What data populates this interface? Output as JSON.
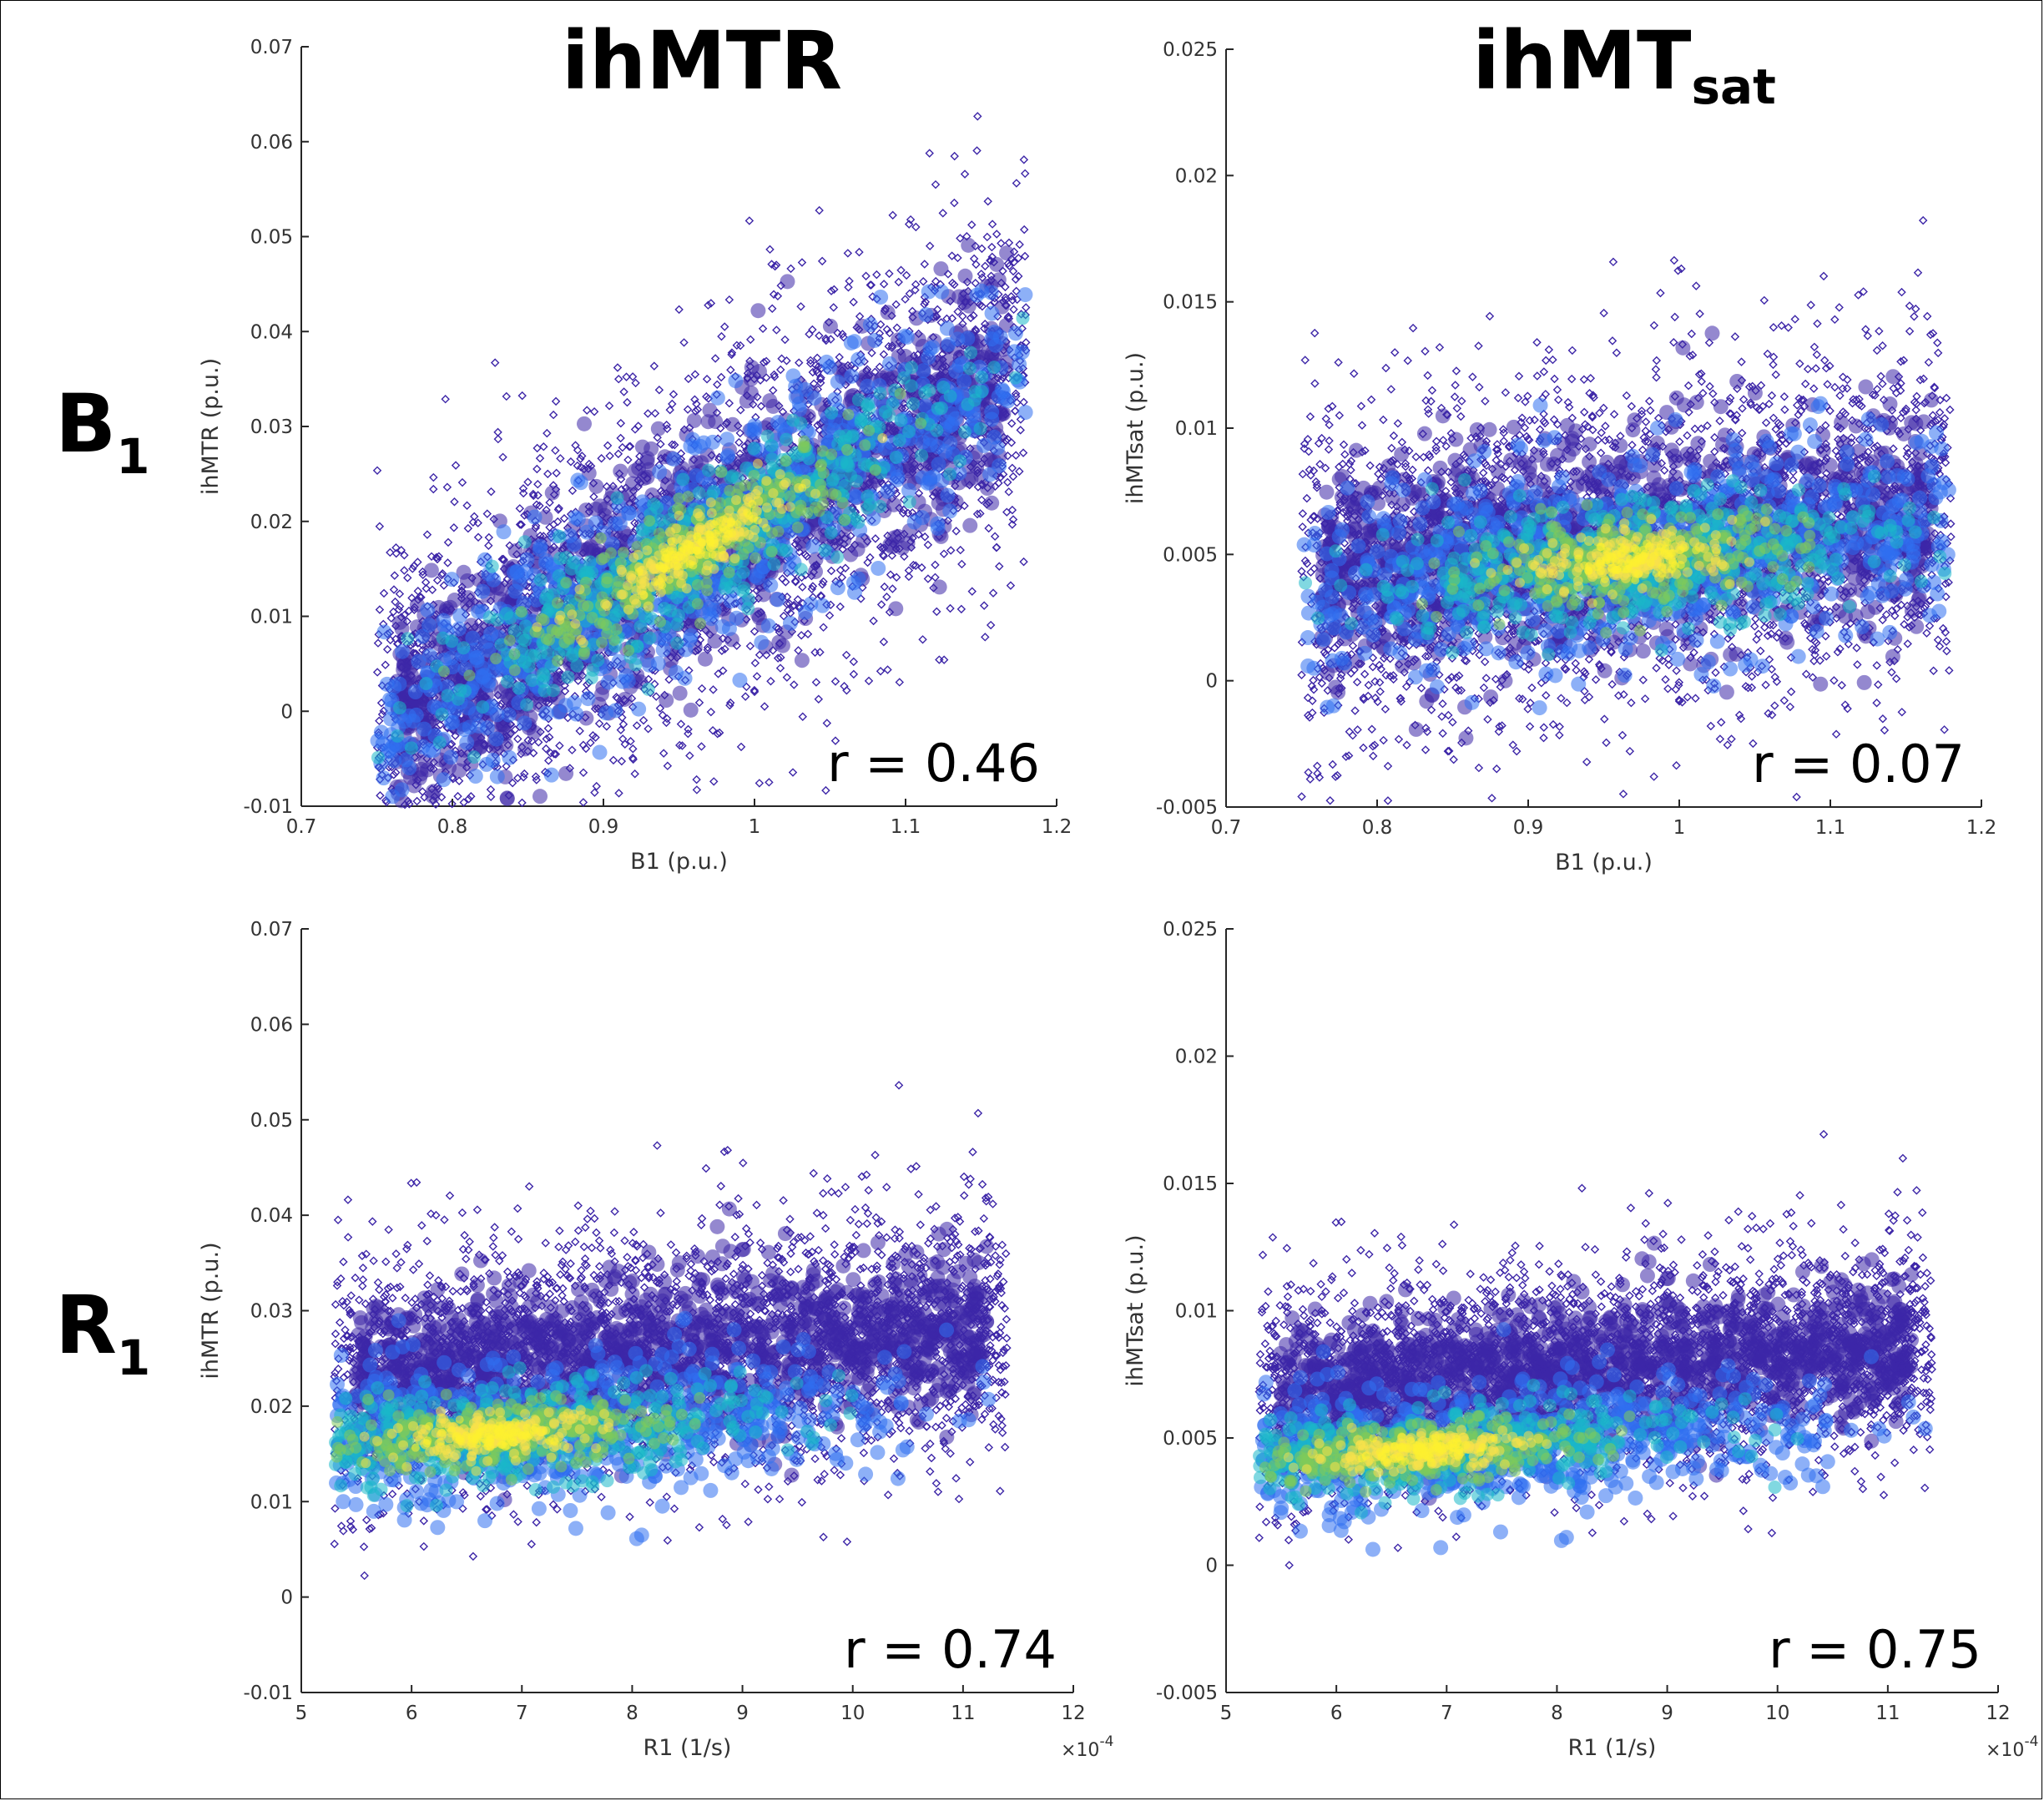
{
  "column_titles": [
    {
      "main": "ihMTR",
      "sub": ""
    },
    {
      "main": "ihMT",
      "sub": "sat"
    }
  ],
  "row_labels": [
    {
      "main": "B",
      "sub": "1"
    },
    {
      "main": "R",
      "sub": "1"
    }
  ],
  "colors": {
    "low_density": "#3d26a8",
    "mid_low": "#2f6ff0",
    "mid": "#19b8c8",
    "mid_high": "#7fcb5a",
    "high_density": "#f9e14b",
    "peak": "#fdf02f"
  },
  "chart_data": [
    {
      "type": "scatter",
      "xlabel": "B1 (p.u.)",
      "ylabel": "ihMTR (p.u.)",
      "xlim": [
        0.7,
        1.2
      ],
      "ylim": [
        -0.01,
        0.07
      ],
      "xticks": [
        "0.7",
        "0.8",
        "0.9",
        "1",
        "1.1",
        "1.2"
      ],
      "yticks": [
        "-0.01",
        "0",
        "0.01",
        "0.02",
        "0.03",
        "0.04",
        "0.05",
        "0.06",
        "0.07"
      ],
      "x_multiplier": "",
      "correlation": "r = 0.46",
      "point_cloud": {
        "x_range": [
          0.75,
          1.18
        ],
        "center": [
          0.96,
          0.017
        ],
        "y_spread": 0.008,
        "slope": 0.045,
        "density_peak": [
          0.96,
          0.017
        ]
      }
    },
    {
      "type": "scatter",
      "xlabel": "B1 (p.u.)",
      "ylabel": "ihMTsat (p.u.)",
      "xlim": [
        0.7,
        1.2
      ],
      "ylim": [
        -0.005,
        0.025
      ],
      "xticks": [
        "0.7",
        "0.8",
        "0.9",
        "1",
        "1.1",
        "1.2"
      ],
      "yticks": [
        "-0.005",
        "0",
        "0.005",
        "0.01",
        "0.015",
        "0.02",
        "0.025"
      ],
      "x_multiplier": "",
      "correlation": "r = 0.07",
      "point_cloud": {
        "x_range": [
          0.75,
          1.18
        ],
        "center": [
          0.97,
          0.0055
        ],
        "y_spread": 0.0028,
        "slope": 0.003,
        "density_peak": [
          0.97,
          0.0048
        ]
      }
    },
    {
      "type": "scatter",
      "xlabel": "R1 (1/s)",
      "ylabel": "ihMTR (p.u.)",
      "xlim": [
        5,
        12
      ],
      "ylim": [
        -0.01,
        0.07
      ],
      "xticks": [
        "5",
        "6",
        "7",
        "8",
        "9",
        "10",
        "11",
        "12"
      ],
      "yticks": [
        "-0.01",
        "0",
        "0.01",
        "0.02",
        "0.03",
        "0.04",
        "0.05",
        "0.06",
        "0.07"
      ],
      "x_multiplier": "×10^-4",
      "correlation": "r = 0.74",
      "point_cloud": {
        "x_range": [
          5.3,
          11.4
        ],
        "center": [
          7.8,
          0.025
        ],
        "y_spread": 0.0055,
        "slope": 0.0062,
        "density_peak": [
          6.75,
          0.017
        ]
      }
    },
    {
      "type": "scatter",
      "xlabel": "R1 (1/s)",
      "ylabel": "ihMTsat (p.u.)",
      "xlim": [
        5,
        12
      ],
      "ylim": [
        -0.005,
        0.025
      ],
      "xticks": [
        "5",
        "6",
        "7",
        "8",
        "9",
        "10",
        "11",
        "12"
      ],
      "yticks": [
        "-0.005",
        "0",
        "0.005",
        "0.01",
        "0.015",
        "0.02",
        "0.025"
      ],
      "x_multiplier": "×10^-4",
      "correlation": "r = 0.75",
      "point_cloud": {
        "x_range": [
          5.3,
          11.4
        ],
        "center": [
          7.8,
          0.0075
        ],
        "y_spread": 0.0018,
        "slope": 0.0022,
        "density_peak": [
          6.75,
          0.0045
        ]
      }
    }
  ]
}
